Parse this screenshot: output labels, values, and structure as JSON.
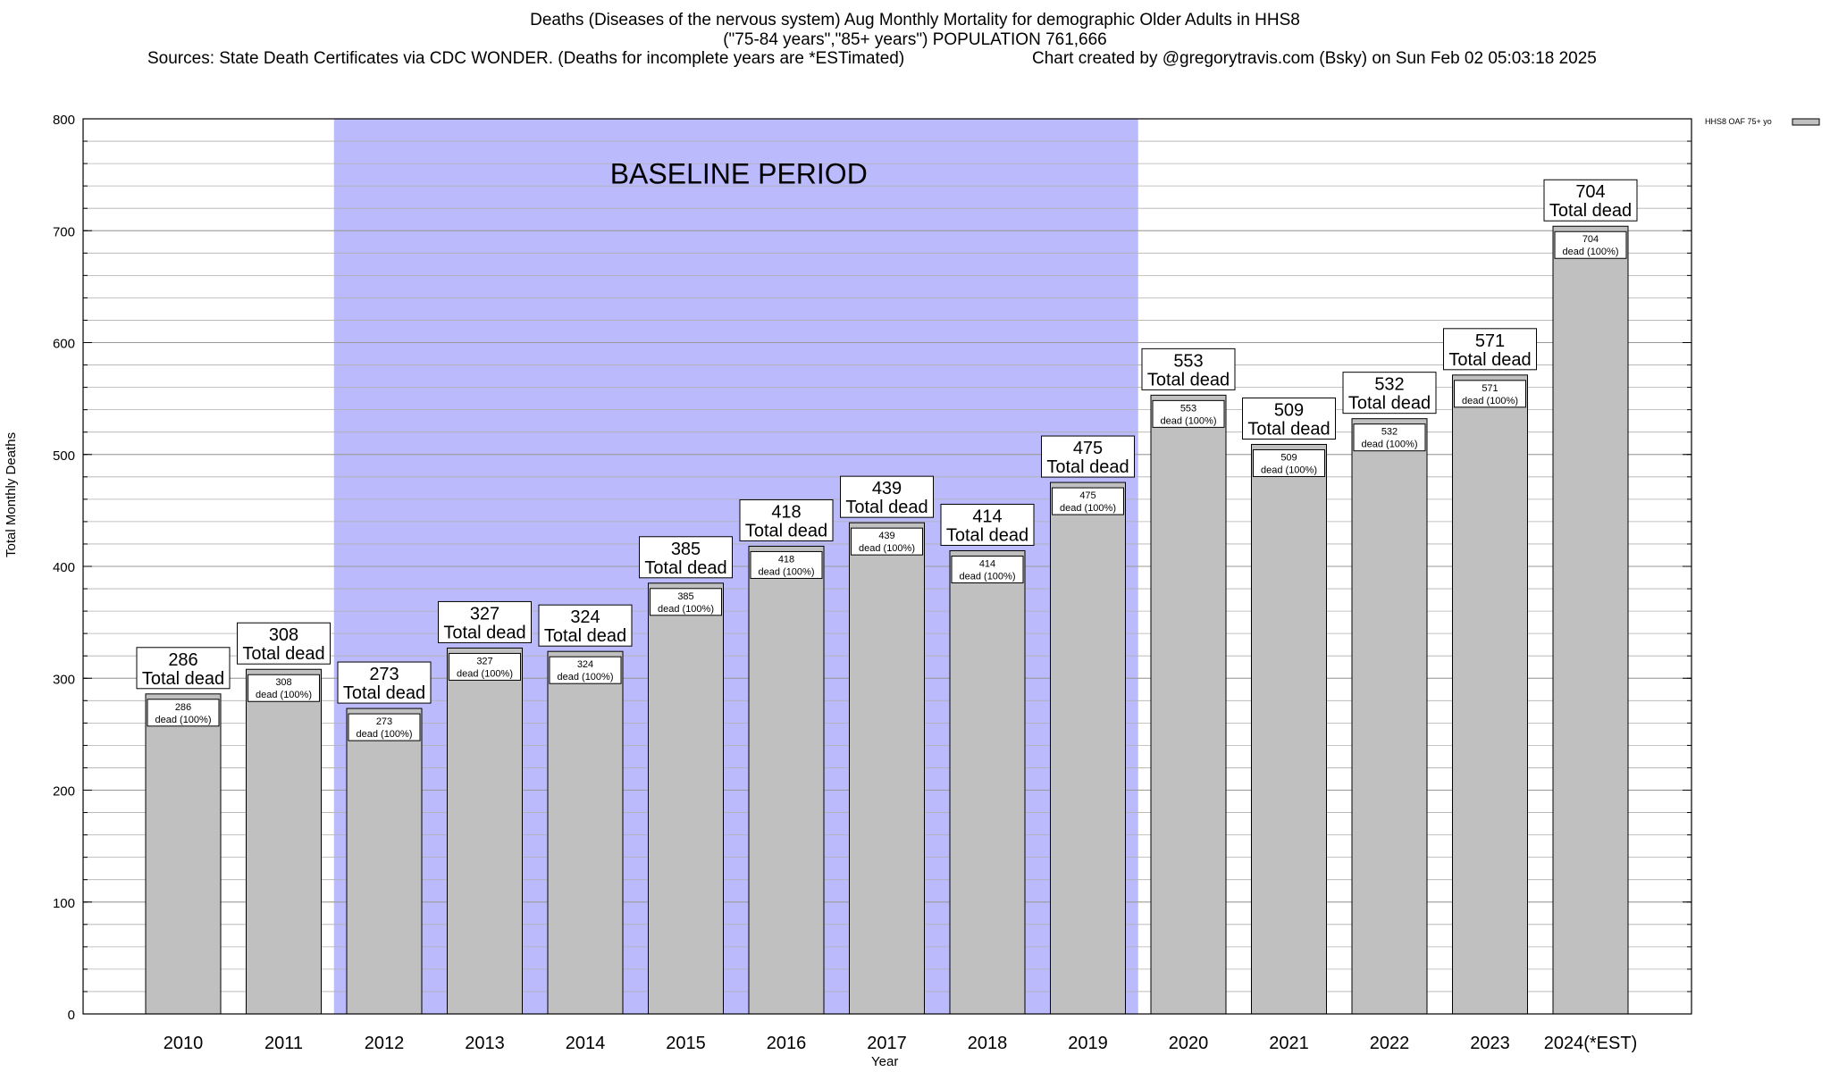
{
  "title": {
    "line1": "Deaths (Diseases of the nervous system) Aug Monthly Mortality for demographic Older Adults in HHS8",
    "line2": "(\"75-84 years\",\"85+ years\") POPULATION 761,666",
    "line3_left": "Sources: State Death Certificates via CDC WONDER. (Deaths for incomplete years are *ESTimated)",
    "line3_right": "Chart created by @gregorytravis.com (Bsky) on Sun Feb 02 05:03:18 2025"
  },
  "chart_data": {
    "type": "bar",
    "categories": [
      "2010",
      "2011",
      "2012",
      "2013",
      "2014",
      "2015",
      "2016",
      "2017",
      "2018",
      "2019",
      "2020",
      "2021",
      "2022",
      "2023",
      "2024(*EST)"
    ],
    "series": [
      {
        "name": "HHS8 OAF 75+ yo",
        "values": [
          286,
          308,
          273,
          327,
          324,
          385,
          418,
          439,
          414,
          475,
          553,
          509,
          532,
          571,
          704
        ]
      }
    ],
    "bar_label_top_suffix": "Total dead",
    "bar_label_inner_suffix": "dead (100%)",
    "xlabel": "Year",
    "ylabel": "Total Monthly Deaths",
    "ylim": [
      0,
      800
    ],
    "yticks": [
      0,
      100,
      200,
      300,
      400,
      500,
      600,
      700,
      800
    ],
    "y_minor_step": 20,
    "grid": true,
    "legend": "top-right",
    "annotation": {
      "text": "BASELINE PERIOD",
      "from_category": "2012",
      "to_category": "2019"
    },
    "colors": {
      "bar_fill": "#c0c0c0",
      "bar_stroke": "#000000",
      "baseline_fill": "#babafc",
      "grid": "#b0b0b0"
    }
  }
}
